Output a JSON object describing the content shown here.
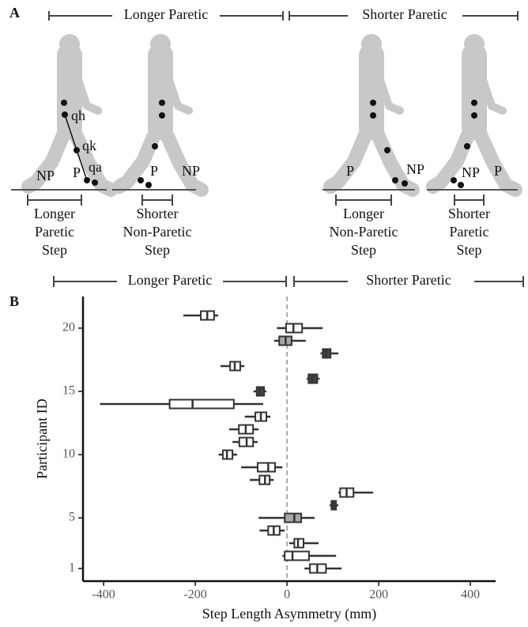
{
  "panel_a": {
    "label": "A",
    "brackets": [
      "Longer Paretic",
      "Shorter Paretic"
    ],
    "joint_labels": [
      "qh",
      "qk",
      "qa"
    ],
    "foot_labels": [
      "NP",
      "P",
      "P",
      "NP",
      "P",
      "NP",
      "NP",
      "P"
    ],
    "steps": [
      [
        "Longer",
        "Paretic",
        "Step"
      ],
      [
        "Shorter",
        "Non-Paretic",
        "Step"
      ],
      [
        "Longer",
        "Non-Paretic",
        "Step"
      ],
      [
        "Shorter",
        "Paretic",
        "Step"
      ]
    ]
  },
  "chart_data": {
    "type": "box",
    "panel_label": "B",
    "brackets": [
      "Longer Paretic",
      "Shorter Paretic"
    ],
    "x_label": "Step Length Asymmetry (mm)",
    "y_label": "Participant ID",
    "xlim": [
      -445,
      455
    ],
    "xticks": [
      -400,
      -200,
      0,
      200,
      400
    ],
    "ylim": [
      0,
      22.5
    ],
    "yticks": [
      1,
      5,
      10,
      15,
      20
    ],
    "reference_x": 0,
    "boxes": [
      {
        "y": 21,
        "min": -226,
        "q1": -188,
        "median": -174,
        "q3": -159,
        "max": -150,
        "fill": "#ffffff"
      },
      {
        "y": 20,
        "min": -22,
        "q1": -2,
        "median": 14,
        "q3": 33,
        "max": 78,
        "fill": "#ffffff"
      },
      {
        "y": 19,
        "min": -28,
        "q1": -17,
        "median": -3,
        "q3": 10,
        "max": 41,
        "fill": "#a8a8a8"
      },
      {
        "y": 18,
        "min": 73,
        "q1": 78,
        "median": 85,
        "q3": 95,
        "max": 112,
        "fill": "#444444"
      },
      {
        "y": 17,
        "min": -145,
        "q1": -124,
        "median": -114,
        "q3": -102,
        "max": -93,
        "fill": "#ffffff"
      },
      {
        "y": 16,
        "min": 43,
        "q1": 47,
        "median": 55,
        "q3": 66,
        "max": 71,
        "fill": "#444444"
      },
      {
        "y": 15,
        "min": -73,
        "q1": -66,
        "median": -59,
        "q3": -50,
        "max": -45,
        "fill": "#444444"
      },
      {
        "y": 14,
        "min": -408,
        "q1": -256,
        "median": -206,
        "q3": -116,
        "max": -52,
        "fill": "#ffffff"
      },
      {
        "y": 13,
        "min": -92,
        "q1": -69,
        "median": -57,
        "q3": -45,
        "max": -36,
        "fill": "#ffffff"
      },
      {
        "y": 12,
        "min": -126,
        "q1": -105,
        "median": -90,
        "q3": -74,
        "max": -62,
        "fill": "#ffffff"
      },
      {
        "y": 11,
        "min": -119,
        "q1": -104,
        "median": -88,
        "q3": -74,
        "max": -64,
        "fill": "#ffffff"
      },
      {
        "y": 10,
        "min": -149,
        "q1": -140,
        "median": -131,
        "q3": -119,
        "max": -109,
        "fill": "#ffffff"
      },
      {
        "y": 9,
        "min": -100,
        "q1": -64,
        "median": -41,
        "q3": -26,
        "max": -10,
        "fill": "#ffffff"
      },
      {
        "y": 8,
        "min": -81,
        "q1": -60,
        "median": -48,
        "q3": -38,
        "max": -29,
        "fill": "#ffffff"
      },
      {
        "y": 7,
        "min": 112,
        "q1": 116,
        "median": 130,
        "q3": 145,
        "max": 188,
        "fill": "#ffffff"
      },
      {
        "y": 6,
        "min": 93,
        "q1": 97,
        "median": 102,
        "q3": 107,
        "max": 112,
        "fill": "#444444"
      },
      {
        "y": 5,
        "min": -62,
        "q1": -5,
        "median": 16,
        "q3": 31,
        "max": 60,
        "fill": "#a8a8a8"
      },
      {
        "y": 4,
        "min": -60,
        "q1": -41,
        "median": -29,
        "q3": -16,
        "max": -5,
        "fill": "#ffffff"
      },
      {
        "y": 3,
        "min": 5,
        "q1": 16,
        "median": 24,
        "q3": 36,
        "max": 69,
        "fill": "#ffffff"
      },
      {
        "y": 2,
        "min": -10,
        "q1": -5,
        "median": 12,
        "q3": 48,
        "max": 107,
        "fill": "#ffffff"
      },
      {
        "y": 1,
        "min": 38,
        "q1": 50,
        "median": 66,
        "q3": 85,
        "max": 119,
        "fill": "#ffffff"
      }
    ]
  }
}
